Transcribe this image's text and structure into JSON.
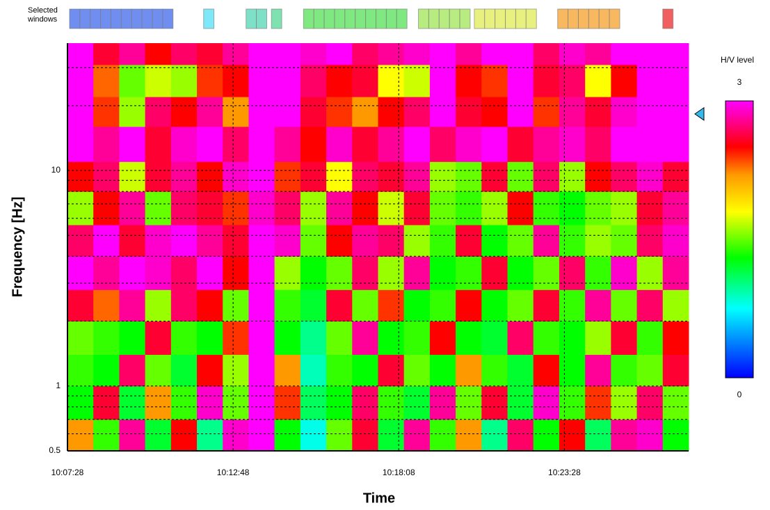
{
  "chart_data": {
    "type": "heatmap",
    "x_label": "Time",
    "y_label": "Frequency [Hz]",
    "colorbar_title": "H/V level",
    "windows_label": "Selected windows",
    "xlim": [
      36448,
      37648
    ],
    "xticks": [
      {
        "value": 36448,
        "label": "10:07:28"
      },
      {
        "value": 36768,
        "label": "10:12:48"
      },
      {
        "value": 37088,
        "label": "10:18:08"
      },
      {
        "value": 37408,
        "label": "10:23:28"
      }
    ],
    "ylim": [
      0.5,
      39
    ],
    "y_log": true,
    "yticks": [
      0.5,
      1,
      10
    ],
    "minor_yticks": [
      0.6,
      0.7,
      0.8,
      0.9,
      2,
      3,
      4,
      5,
      6,
      7,
      8,
      9,
      20,
      30
    ],
    "grid": true,
    "clim": [
      0,
      3
    ],
    "cticks": [
      0,
      3
    ],
    "colormap": [
      [
        0,
        "#0000ff"
      ],
      [
        0.75,
        "#00ffff"
      ],
      [
        1.3,
        "#00ff00"
      ],
      [
        1.8,
        "#ffff00"
      ],
      [
        2.2,
        "#ff9900"
      ],
      [
        2.5,
        "#ff0000"
      ],
      [
        3,
        "#ff00ff"
      ]
    ],
    "marker_frequency": 18.3,
    "marker_color": "#33bbee",
    "window_length": 20,
    "windows": [
      {
        "start": 36452,
        "count": 10,
        "color": "#6f8ef0"
      },
      {
        "start": 36711,
        "count": 1,
        "color": "#7de8f8"
      },
      {
        "start": 36793,
        "count": 2,
        "color": "#7fe0c8"
      },
      {
        "start": 36842,
        "count": 1,
        "color": "#7fe0b0"
      },
      {
        "start": 36904,
        "count": 10,
        "color": "#80e880"
      },
      {
        "start": 37126,
        "count": 5,
        "color": "#b8ec80"
      },
      {
        "start": 37234,
        "count": 6,
        "color": "#e8f080"
      },
      {
        "start": 37395,
        "count": 6,
        "color": "#f8b860"
      },
      {
        "start": 37598,
        "count": 1,
        "color": "#f06060"
      }
    ],
    "xbins": [
      36448,
      36498,
      36548,
      36598,
      36648,
      36698,
      36748,
      36798,
      36848,
      36898,
      36948,
      36998,
      37048,
      37098,
      37148,
      37198,
      37248,
      37298,
      37348,
      37398,
      37448,
      37498,
      37548,
      37598,
      37648
    ],
    "ybins": [
      0.5,
      0.7,
      1,
      1.4,
      2,
      2.8,
      4,
      5.6,
      8,
      11,
      16,
      22,
      31,
      39
    ],
    "z": [
      [
        2.2,
        1.4,
        2.8,
        1.2,
        2.5,
        1.0,
        2.9,
        3,
        1.3,
        0.8,
        1.5,
        2.6,
        1.2,
        2.8,
        1.4,
        2.2,
        1.0,
        2.7,
        1.3,
        2.5,
        1.1,
        2.8,
        2.9,
        1.3
      ],
      [
        1.3,
        2.6,
        1.2,
        2.2,
        1.4,
        2.9,
        1.5,
        3,
        2.4,
        1.1,
        1.3,
        2.7,
        1.4,
        1.2,
        2.8,
        1.5,
        2.6,
        1.2,
        2.9,
        1.4,
        2.4,
        1.6,
        2.7,
        1.5
      ],
      [
        1.4,
        1.3,
        2.7,
        1.5,
        1.2,
        2.5,
        1.6,
        3,
        2.2,
        0.9,
        1.4,
        1.3,
        2.6,
        1.5,
        1.3,
        2.2,
        1.4,
        1.2,
        2.5,
        1.3,
        2.8,
        1.4,
        1.5,
        2.6
      ],
      [
        1.5,
        1.4,
        1.3,
        2.6,
        1.4,
        1.3,
        2.4,
        3,
        1.3,
        1.0,
        1.5,
        2.8,
        1.3,
        1.4,
        2.5,
        1.3,
        1.2,
        2.7,
        1.4,
        1.3,
        1.6,
        2.6,
        1.4,
        2.5
      ],
      [
        2.6,
        2.3,
        2.8,
        1.6,
        2.7,
        2.5,
        1.5,
        3,
        1.4,
        1.2,
        2.6,
        1.5,
        2.4,
        1.3,
        1.4,
        2.5,
        1.3,
        1.5,
        2.6,
        1.4,
        2.8,
        1.5,
        2.7,
        1.6
      ],
      [
        3,
        2.8,
        3,
        2.9,
        2.7,
        3,
        2.5,
        3,
        1.6,
        1.3,
        1.5,
        2.7,
        1.6,
        2.8,
        1.3,
        1.4,
        2.6,
        1.3,
        1.5,
        2.7,
        1.4,
        2.9,
        1.6,
        2.8
      ],
      [
        2.7,
        3,
        2.6,
        2.9,
        3,
        2.8,
        2.6,
        3,
        2.9,
        1.5,
        2.5,
        2.8,
        2.7,
        1.6,
        1.4,
        2.6,
        1.3,
        1.5,
        2.8,
        1.4,
        1.6,
        1.5,
        2.7,
        2.9
      ],
      [
        1.6,
        2.5,
        2.8,
        1.5,
        2.7,
        2.6,
        2.4,
        2.9,
        2.7,
        1.6,
        2.8,
        2.5,
        1.7,
        2.6,
        1.5,
        1.4,
        1.6,
        2.5,
        1.4,
        1.3,
        1.5,
        1.6,
        2.6,
        2.8
      ],
      [
        2.5,
        2.7,
        1.7,
        2.6,
        2.8,
        2.5,
        2.9,
        3,
        2.4,
        2.6,
        1.8,
        2.7,
        2.6,
        2.8,
        1.6,
        1.5,
        2.6,
        1.5,
        2.7,
        1.6,
        2.5,
        2.7,
        2.9,
        2.6
      ],
      [
        3,
        2.8,
        3,
        2.6,
        2.9,
        3,
        2.7,
        3,
        2.8,
        2.5,
        2.9,
        2.6,
        2.8,
        3,
        2.7,
        2.9,
        3,
        2.6,
        2.8,
        2.9,
        2.7,
        3,
        3,
        3
      ],
      [
        3,
        2.4,
        1.6,
        2.7,
        2.5,
        2.8,
        2.2,
        3,
        3,
        2.6,
        2.4,
        2.2,
        2.5,
        2.7,
        3,
        2.6,
        2.5,
        3,
        2.4,
        2.8,
        2.6,
        2.9,
        3,
        3
      ],
      [
        3,
        2.3,
        1.5,
        1.7,
        1.6,
        2.4,
        2.5,
        3,
        3,
        2.7,
        2.5,
        2.6,
        1.8,
        1.7,
        3,
        2.5,
        2.4,
        3,
        2.6,
        2.7,
        1.8,
        2.5,
        3,
        3
      ],
      [
        3,
        2.6,
        2.8,
        2.5,
        2.7,
        2.6,
        2.8,
        3,
        3,
        2.9,
        3,
        2.7,
        2.8,
        2.9,
        3,
        2.8,
        3,
        3,
        2.7,
        2.9,
        2.8,
        3,
        3,
        3
      ]
    ]
  }
}
